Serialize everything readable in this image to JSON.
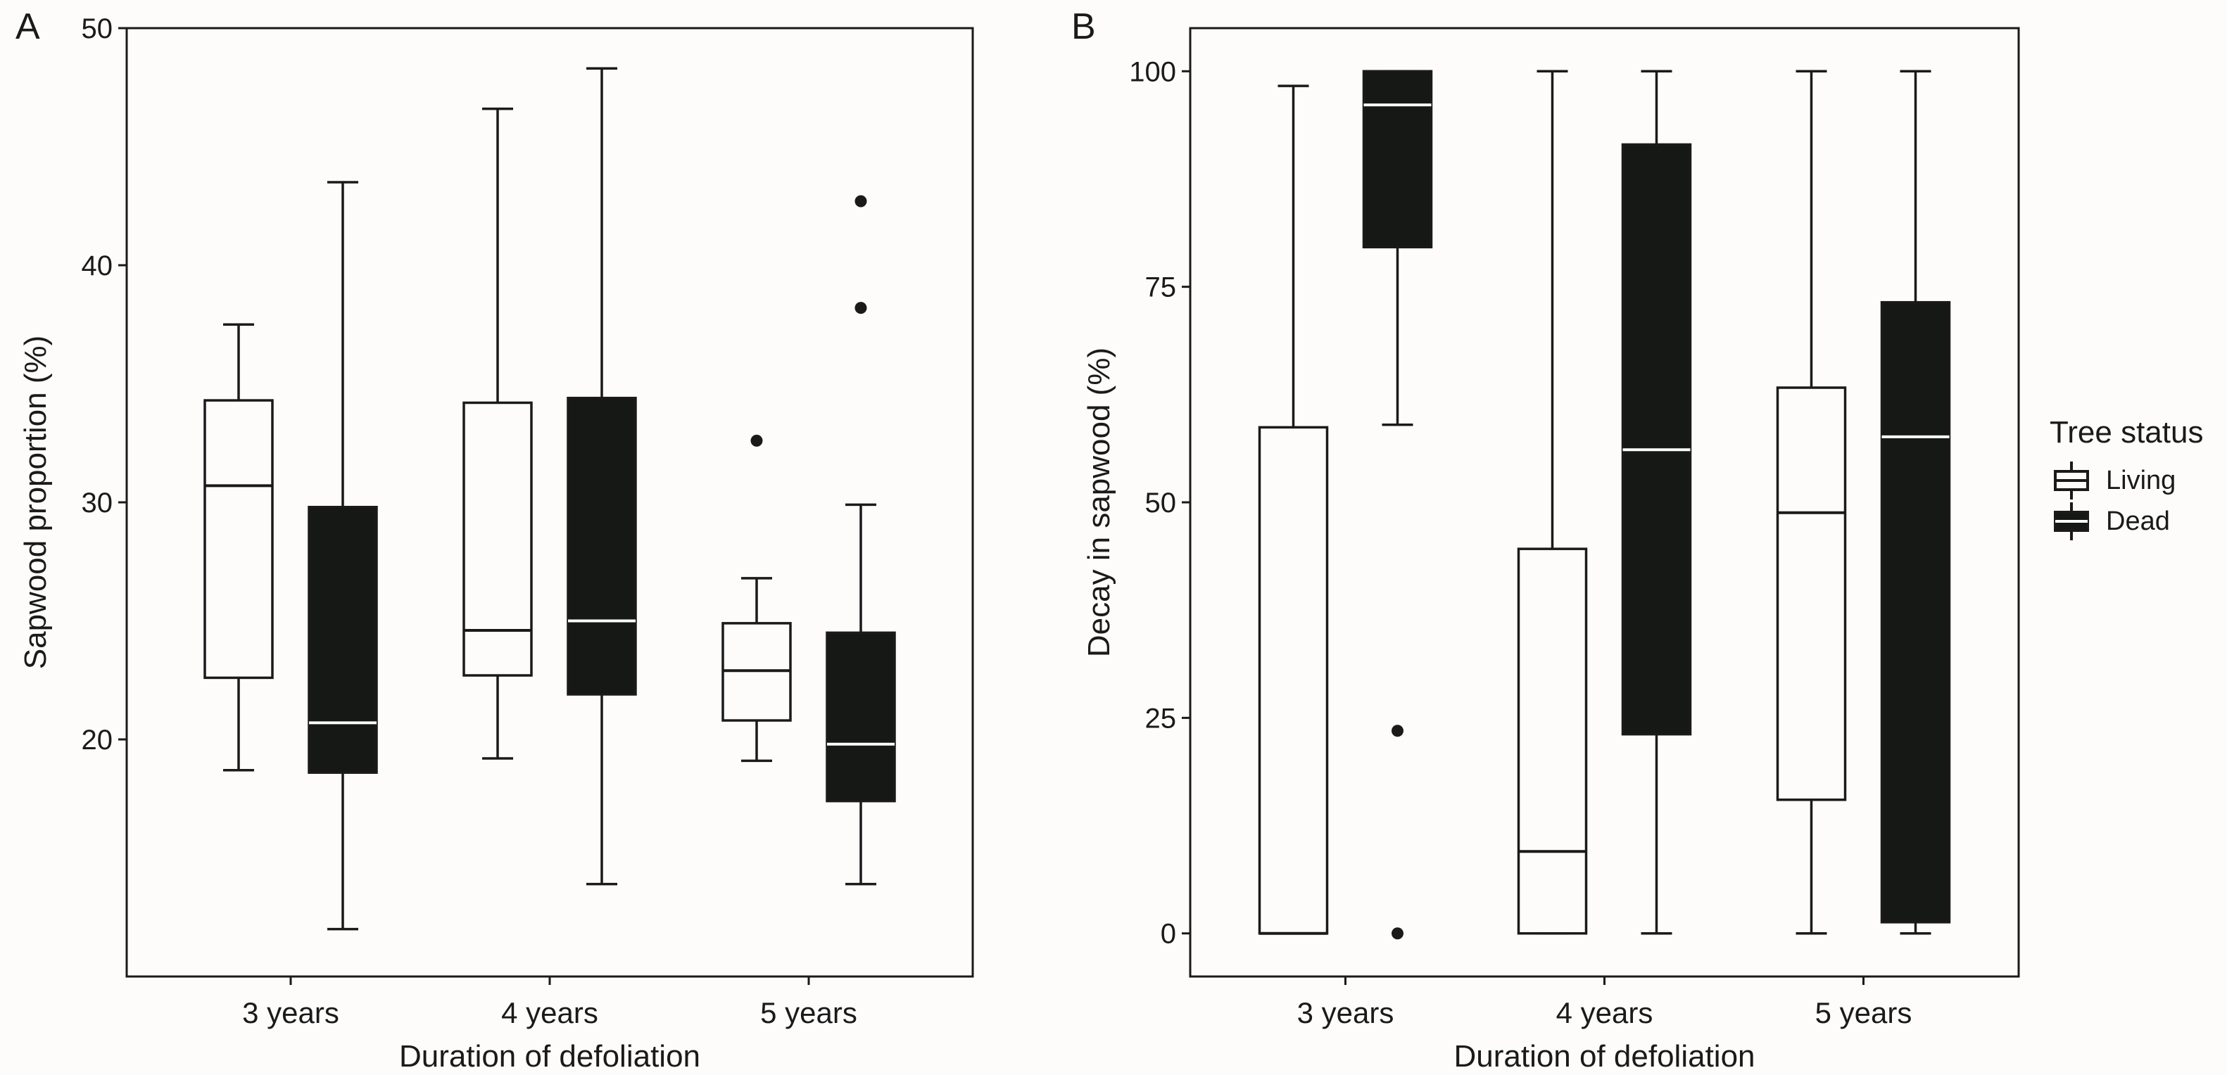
{
  "panels": {
    "a": {
      "letter": "A"
    },
    "b": {
      "letter": "B"
    }
  },
  "legend": {
    "title": "Tree status",
    "items": [
      {
        "label": "Living",
        "fill": "#fdfcfb"
      },
      {
        "label": "Dead",
        "fill": "#161815"
      }
    ]
  },
  "colors": {
    "background": "#fdfcfb",
    "ink": "#1a1a1a",
    "living_fill": "#fdfcfb",
    "dead_fill": "#161815",
    "dead_median": "#ffffff"
  },
  "chart_data": [
    {
      "type": "boxplot",
      "panel": "A",
      "title": "",
      "xlabel": "Duration of defoliation",
      "ylabel": "Sapwood proportion (%)",
      "categories": [
        "3 years",
        "4 years",
        "5 years"
      ],
      "ylim": [
        10,
        50
      ],
      "yticks": [
        20,
        30,
        40,
        50
      ],
      "grid": false,
      "series": [
        {
          "name": "Living",
          "boxes": [
            {
              "category": "3 years",
              "min": 18.7,
              "q1": 22.6,
              "median": 30.7,
              "q3": 34.3,
              "max": 37.5,
              "outliers": []
            },
            {
              "category": "4 years",
              "min": 19.2,
              "q1": 22.7,
              "median": 24.6,
              "q3": 34.2,
              "max": 46.6,
              "outliers": []
            },
            {
              "category": "5 years",
              "min": 19.1,
              "q1": 20.8,
              "median": 22.9,
              "q3": 24.9,
              "max": 26.8,
              "outliers": [
                32.6
              ]
            }
          ]
        },
        {
          "name": "Dead",
          "boxes": [
            {
              "category": "3 years",
              "min": 12.0,
              "q1": 18.6,
              "median": 20.7,
              "q3": 29.8,
              "max": 43.5,
              "outliers": []
            },
            {
              "category": "4 years",
              "min": 13.9,
              "q1": 21.9,
              "median": 25.0,
              "q3": 34.4,
              "max": 48.3,
              "outliers": []
            },
            {
              "category": "5 years",
              "min": 13.9,
              "q1": 17.4,
              "median": 19.8,
              "q3": 24.5,
              "max": 29.9,
              "outliers": [
                38.2,
                42.7
              ]
            }
          ]
        }
      ]
    },
    {
      "type": "boxplot",
      "panel": "B",
      "title": "",
      "xlabel": "Duration of defoliation",
      "ylabel": "Decay in sapwood (%)",
      "categories": [
        "3 years",
        "4 years",
        "5 years"
      ],
      "ylim": [
        -5,
        105
      ],
      "yticks": [
        0,
        25,
        50,
        75,
        100
      ],
      "grid": false,
      "series": [
        {
          "name": "Living",
          "boxes": [
            {
              "category": "3 years",
              "min": 0,
              "q1": 0,
              "median": 0,
              "q3": 58.7,
              "max": 98.3,
              "outliers": []
            },
            {
              "category": "4 years",
              "min": 0,
              "q1": 0,
              "median": 9.5,
              "q3": 44.6,
              "max": 100,
              "outliers": []
            },
            {
              "category": "5 years",
              "min": 0,
              "q1": 15.5,
              "median": 48.8,
              "q3": 63.3,
              "max": 100,
              "outliers": []
            }
          ]
        },
        {
          "name": "Dead",
          "boxes": [
            {
              "category": "3 years",
              "min": 59.0,
              "q1": 79.6,
              "median": 96.1,
              "q3": 100,
              "max": 100,
              "outliers": [
                0,
                23.5
              ]
            },
            {
              "category": "4 years",
              "min": 0,
              "q1": 23.1,
              "median": 56.1,
              "q3": 91.5,
              "max": 100,
              "outliers": []
            },
            {
              "category": "5 years",
              "min": 0,
              "q1": 1.3,
              "median": 57.6,
              "q3": 73.2,
              "max": 100,
              "outliers": []
            }
          ]
        }
      ]
    }
  ]
}
